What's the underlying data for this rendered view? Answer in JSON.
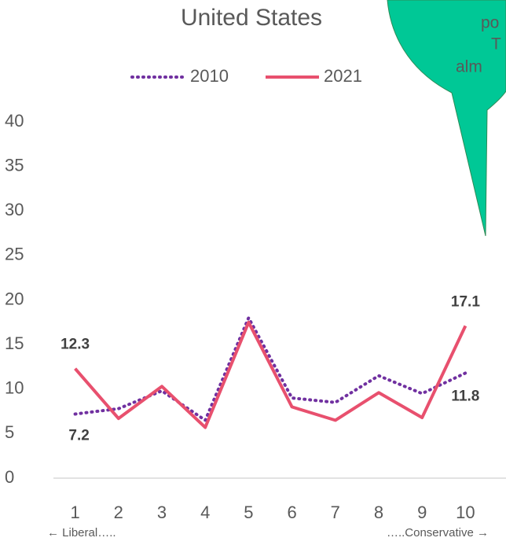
{
  "chart_data": {
    "type": "line",
    "title": "United States",
    "categories": [
      "1",
      "2",
      "3",
      "4",
      "5",
      "6",
      "7",
      "8",
      "9",
      "10"
    ],
    "series": [
      {
        "name": "2010",
        "color": "#7030a0",
        "dash": "dotted",
        "values": [
          7.2,
          7.8,
          9.8,
          6.5,
          18,
          9,
          8.5,
          11.5,
          9.5,
          11.8
        ]
      },
      {
        "name": "2021",
        "color": "#e8506e",
        "dash": "solid",
        "values": [
          12.3,
          6.7,
          10.3,
          5.7,
          17.5,
          8,
          6.5,
          9.6,
          6.8,
          17.1
        ]
      }
    ],
    "ylim": [
      0,
      40
    ],
    "yticks": [
      0,
      5,
      10,
      15,
      20,
      25,
      30,
      35,
      40
    ],
    "grid": false,
    "legend": "top",
    "annotations": [
      "← Liberal…..",
      "…..Conservative →"
    ],
    "callout": [
      "po",
      "T",
      "alm"
    ]
  }
}
